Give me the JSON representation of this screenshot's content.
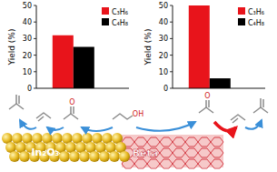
{
  "chart_data": [
    {
      "type": "bar",
      "y_label": "Yield (%)",
      "categories": [
        null
      ],
      "series": [
        {
          "name": "C₃H₆",
          "color": "#e8141b",
          "values": [
            32
          ]
        },
        {
          "name": "C₄H₈",
          "color": "#000000",
          "values": [
            25
          ]
        }
      ],
      "ylim": [
        0,
        50
      ],
      "yticks": [
        0,
        10,
        20,
        30,
        40,
        50
      ],
      "grid": false,
      "legend": "top right"
    },
    {
      "type": "bar",
      "y_label": "Yield (%)",
      "categories": [
        null
      ],
      "series": [
        {
          "name": "C₃H₆",
          "color": "#e8141b",
          "values": [
            50
          ]
        },
        {
          "name": "C₄H₈",
          "color": "#000000",
          "values": [
            6
          ]
        }
      ],
      "ylim": [
        0,
        50
      ],
      "yticks": [
        0,
        10,
        20,
        30,
        40,
        50
      ],
      "grid": false,
      "legend": "top right"
    }
  ],
  "diagram": {
    "surfaces": [
      {
        "label": "In₂O₃"
      },
      {
        "label": "Beta"
      }
    ],
    "molecules": [
      {
        "label": "O"
      },
      {
        "label": "OH"
      },
      {
        "label": "O"
      }
    ]
  }
}
